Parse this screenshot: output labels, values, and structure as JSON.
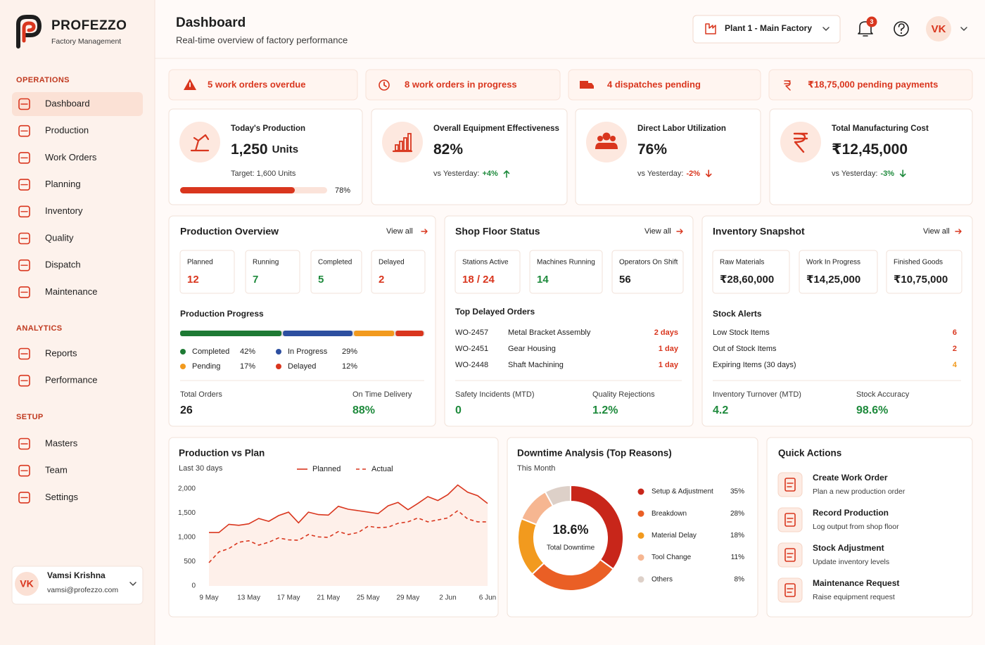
{
  "sidebar": {
    "brand": "PROFEZZO",
    "tagline": "Factory Management",
    "sections": [
      {
        "title": "OPERATIONS",
        "items": [
          {
            "label": "Dashboard",
            "active": true
          },
          {
            "label": "Production"
          },
          {
            "label": "Work Orders"
          },
          {
            "label": "Planning"
          },
          {
            "label": "Inventory"
          },
          {
            "label": "Quality"
          },
          {
            "label": "Dispatch"
          },
          {
            "label": "Maintenance"
          }
        ]
      },
      {
        "title": "ANALYTICS",
        "items": [
          {
            "label": "Reports"
          },
          {
            "label": "Performance"
          }
        ]
      },
      {
        "title": "SETUP",
        "items": [
          {
            "label": "Masters"
          },
          {
            "label": "Team"
          },
          {
            "label": "Settings"
          }
        ]
      }
    ],
    "user": {
      "initials": "VK",
      "name": "Vamsi Krishna",
      "email": "vamsi@profezzo.com"
    }
  },
  "header": {
    "title": "Dashboard",
    "subtitle": "Real-time overview of factory performance",
    "plant": "Plant 1 - Main Factory",
    "notifications": 3,
    "avatar": "VK"
  },
  "alerts": [
    "5 work orders overdue",
    "8 work orders in progress",
    "4 dispatches pending",
    "₹18,75,000 pending payments"
  ],
  "kpis": [
    {
      "title": "Today's Production",
      "value": "1,250",
      "unit": "Units",
      "note": "Target: 1,600 Units",
      "progress": {
        "value": 78,
        "label": "78%"
      }
    },
    {
      "title": "Overall Equipment Effectiveness",
      "value": "82%",
      "note": "vs Yesterday:",
      "change": "+4%",
      "trend": "up",
      "change_color": "#1e8a3c"
    },
    {
      "title": "Direct Labor Utilization",
      "value": "76%",
      "note": "vs Yesterday:",
      "change": "-2%",
      "trend": "down",
      "change_color": "#d9361e"
    },
    {
      "title": "Total Manufacturing Cost",
      "value": "₹12,45,000",
      "note": "vs Yesterday:",
      "change": "-3%",
      "trend": "down",
      "change_color": "#1e8a3c"
    }
  ],
  "production_overview": {
    "title": "Production Overview",
    "link": "View all",
    "stats": [
      {
        "label": "Planned",
        "value": 12,
        "color": "#d9361e"
      },
      {
        "label": "Running",
        "value": 7,
        "color": "#1e8a3c"
      },
      {
        "label": "Completed",
        "value": 5,
        "color": "#1e8a3c"
      },
      {
        "label": "Delayed",
        "value": 2,
        "color": "#d9361e"
      }
    ],
    "progress_title": "Production Progress",
    "segments": [
      {
        "name": "Completed",
        "value": 42,
        "label": "42%",
        "color": "#1e7a34"
      },
      {
        "name": "In Progress",
        "value": 29,
        "label": "29%",
        "color": "#2d4fa0"
      },
      {
        "name": "Pending",
        "value": 17,
        "label": "17%",
        "color": "#f29a1e"
      },
      {
        "name": "Delayed",
        "value": 12,
        "label": "12%",
        "color": "#d9361e"
      }
    ],
    "footer": [
      {
        "label": "Total Orders",
        "value": "26",
        "color": "#1e1e1e"
      },
      {
        "label": "On Time Delivery",
        "value": "88%",
        "color": "#1e8a3c"
      }
    ]
  },
  "shop_floor": {
    "title": "Shop Floor Status",
    "link": "View all",
    "stats": [
      {
        "label": "Stations Active",
        "value": "18 / 24",
        "color": "#d9361e"
      },
      {
        "label": "Machines Running",
        "value": "14",
        "color": "#1e8a3c"
      },
      {
        "label": "Operators On Shift",
        "value": "56",
        "color": "#1e1e1e"
      }
    ],
    "list_title": "Top Delayed Orders",
    "orders": [
      {
        "id": "WO-2457",
        "name": "Metal Bracket Assembly",
        "delay": "2 days"
      },
      {
        "id": "WO-2451",
        "name": "Gear Housing",
        "delay": "1 day"
      },
      {
        "id": "WO-2448",
        "name": "Shaft Machining",
        "delay": "1 day"
      }
    ],
    "footer": [
      {
        "label": "Safety Incidents (MTD)",
        "value": "0",
        "color": "#1e8a3c"
      },
      {
        "label": "Quality Rejections",
        "value": "1.2%",
        "color": "#1e8a3c"
      }
    ]
  },
  "inventory": {
    "title": "Inventory Snapshot",
    "link": "View all",
    "stats": [
      {
        "label": "Raw Materials",
        "value": "₹28,60,000",
        "color": "#1e1e1e"
      },
      {
        "label": "Work In Progress",
        "value": "₹14,25,000",
        "color": "#1e1e1e"
      },
      {
        "label": "Finished Goods",
        "value": "₹10,75,000",
        "color": "#1e1e1e"
      }
    ],
    "list_title": "Stock Alerts",
    "alerts": [
      {
        "label": "Low Stock Items",
        "value": 6,
        "color": "#d9361e"
      },
      {
        "label": "Out of Stock Items",
        "value": 2,
        "color": "#d9361e"
      },
      {
        "label": "Expiring Items (30 days)",
        "value": 4,
        "color": "#f29a1e"
      }
    ],
    "footer": [
      {
        "label": "Inventory Turnover (MTD)",
        "value": "4.2",
        "color": "#1e8a3c"
      },
      {
        "label": "Stock Accuracy",
        "value": "98.6%",
        "color": "#1e8a3c"
      }
    ]
  },
  "quick_actions": {
    "title": "Quick Actions",
    "items": [
      {
        "title": "Create Work Order",
        "desc": "Plan a new production order"
      },
      {
        "title": "Record Production",
        "desc": "Log output from shop floor"
      },
      {
        "title": "Stock Adjustment",
        "desc": "Update inventory levels"
      },
      {
        "title": "Maintenance Request",
        "desc": "Raise equipment request"
      }
    ]
  },
  "chart_data": [
    {
      "type": "line",
      "title": "Production vs Plan",
      "subtitle": "Last 30 days",
      "categories": [
        "9 May",
        null,
        null,
        null,
        "13 May",
        null,
        null,
        null,
        "17 May",
        null,
        null,
        null,
        "21 May",
        null,
        null,
        null,
        "25 May",
        null,
        null,
        null,
        "29 May",
        null,
        null,
        null,
        "2 Jun",
        null,
        null,
        null,
        "6 Jun"
      ],
      "series": [
        {
          "name": "Planned",
          "color": "#d9361e",
          "dashed": false,
          "area": true,
          "values": [
            1100,
            1100,
            1270,
            1250,
            1280,
            1390,
            1330,
            1450,
            1520,
            1300,
            1520,
            1470,
            1460,
            1640,
            1580,
            1550,
            1520,
            1490,
            1650,
            1720,
            1570,
            1700,
            1840,
            1760,
            1880,
            2080,
            1930,
            1860,
            1700
          ]
        },
        {
          "name": "Actual",
          "color": "#d9361e",
          "dashed": true,
          "area": false,
          "values": [
            480,
            700,
            770,
            900,
            930,
            840,
            900,
            990,
            950,
            940,
            1060,
            1010,
            1000,
            1120,
            1060,
            1100,
            1230,
            1200,
            1210,
            1290,
            1320,
            1400,
            1320,
            1360,
            1400,
            1550,
            1380,
            1320,
            1320
          ]
        }
      ],
      "ylim": [
        0,
        2000
      ],
      "yticks": [
        0,
        500,
        {
          "value": 1000,
          "label": "1,000"
        },
        {
          "value": 1500,
          "label": "1,500"
        },
        {
          "value": 2000,
          "label": "2,000"
        }
      ],
      "grid": false
    },
    {
      "type": "pie",
      "title": "Downtime Analysis (Top Reasons)",
      "subtitle": "This Month",
      "donut": true,
      "center_value": "18.6%",
      "center_label": "Total Downtime",
      "categories": [
        "Setup & Adjustment",
        "Breakdown",
        "Material Delay",
        "Tool Change",
        "Others"
      ],
      "values": [
        35,
        28,
        18,
        11,
        8
      ],
      "value_labels": [
        "35%",
        "28%",
        "18%",
        "11%",
        "8%"
      ],
      "colors": [
        "#c8261a",
        "#ea5f25",
        "#f29a1e",
        "#f6b691",
        "#ddd0c8"
      ]
    }
  ]
}
